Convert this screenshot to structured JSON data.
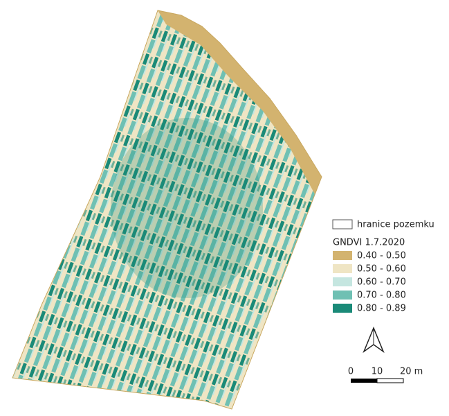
{
  "legend": {
    "boundary_label": "hranice pozemku",
    "title": "GNDVI 1.7.2020",
    "classes": [
      {
        "label": "0.40 - 0.50",
        "color": "#d3b36f"
      },
      {
        "label": "0.50 - 0.60",
        "color": "#efe5c4"
      },
      {
        "label": "0.60 - 0.70",
        "color": "#c5e6e0"
      },
      {
        "label": "0.70 - 0.80",
        "color": "#6fc0b3"
      },
      {
        "label": "0.80 - 0.89",
        "color": "#1a8a78"
      }
    ]
  },
  "scale_bar": {
    "labels": [
      "0",
      "10",
      "20 m"
    ]
  }
}
